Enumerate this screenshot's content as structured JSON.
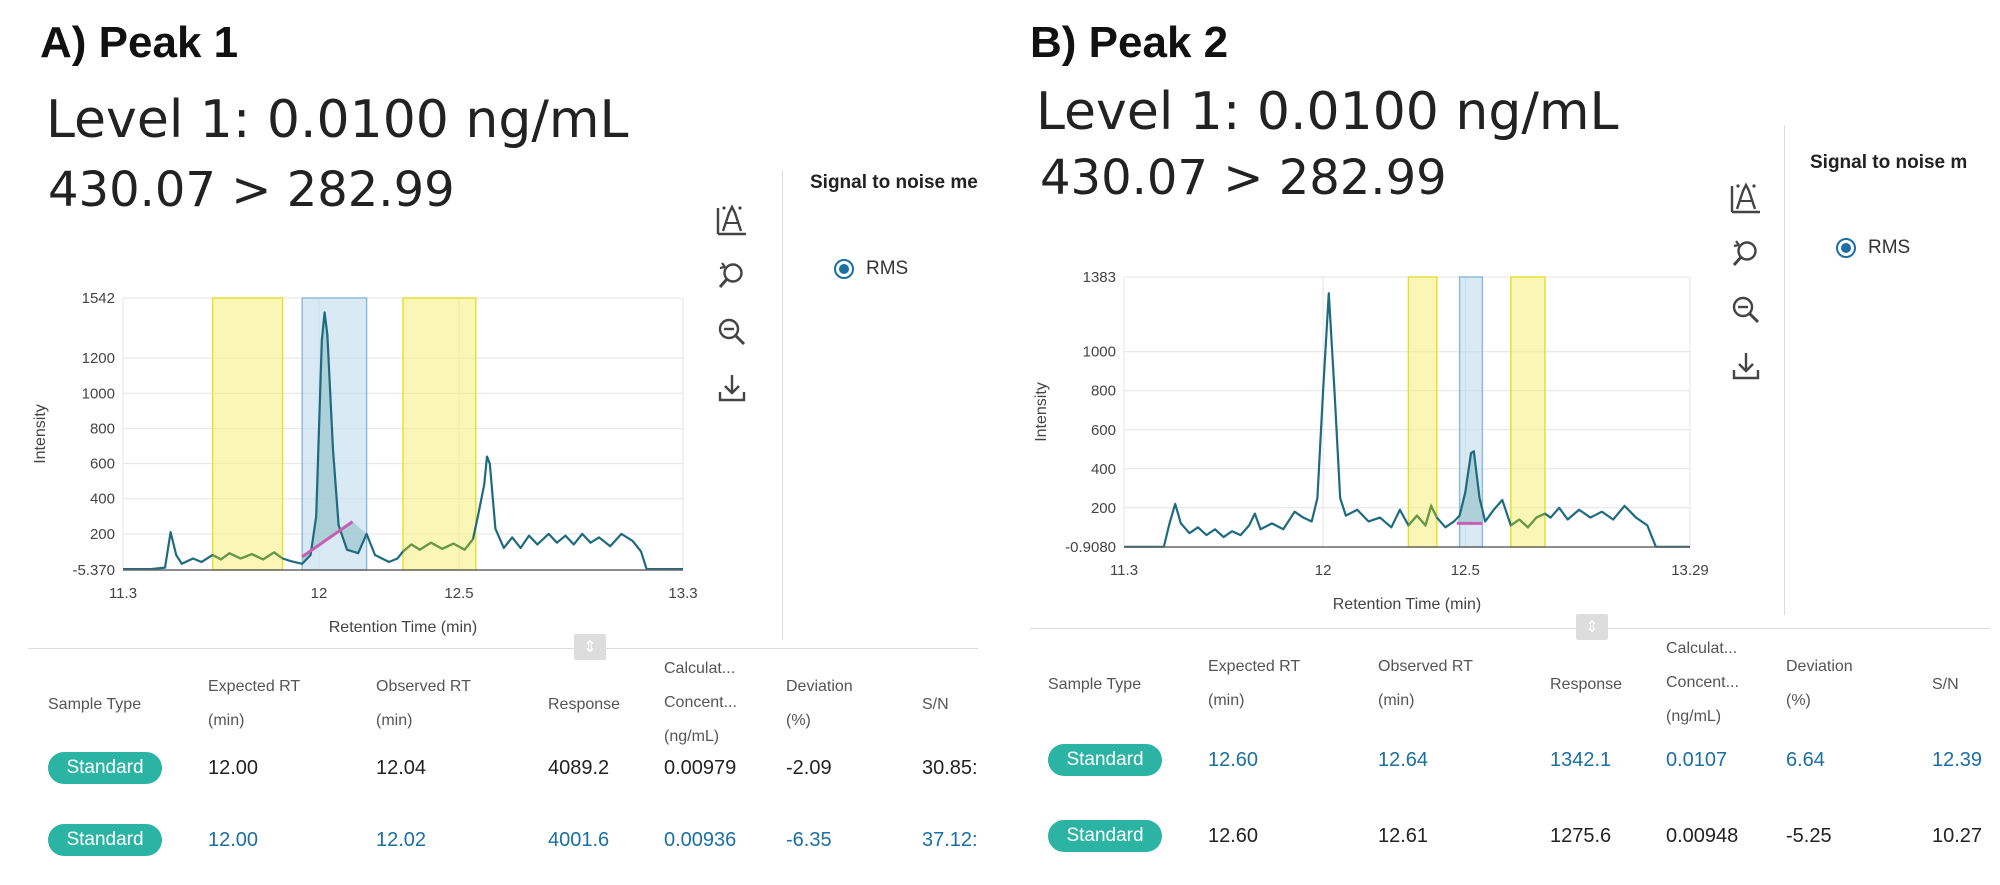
{
  "panels": [
    {
      "label": "A) Peak 1",
      "level": "Level 1: 0.0100 ng/mL",
      "transition": "430.07 > 282.99",
      "signal_to_noise_heading": "Signal to noise me",
      "option_label": "RMS",
      "toolbar_icons": [
        "peak-annotate-icon",
        "reset-zoom-icon",
        "zoom-out-icon",
        "download-icon"
      ],
      "table": {
        "columns": [
          [
            "Sample Type"
          ],
          [
            "Expected RT",
            "(min)"
          ],
          [
            "Observed RT",
            "(min)"
          ],
          [
            "Response"
          ],
          [
            "Calculat...",
            "Concent...",
            "(ng/mL)"
          ],
          [
            "Deviation",
            "(%)"
          ],
          [
            "S/N"
          ]
        ],
        "rows": [
          {
            "sample_type": "Standard",
            "expected_rt": "12.00",
            "observed_rt": "12.04",
            "response": "4089.2",
            "calc_conc": "0.00979",
            "deviation": "-2.09",
            "sn": "30.85:",
            "link_style": false
          },
          {
            "sample_type": "Standard",
            "expected_rt": "12.00",
            "observed_rt": "12.02",
            "response": "4001.6",
            "calc_conc": "0.00936",
            "deviation": "-6.35",
            "sn": "37.12:",
            "link_style": true
          }
        ]
      }
    },
    {
      "label": "B) Peak 2",
      "level": "Level 1: 0.0100 ng/mL",
      "transition": "430.07 > 282.99",
      "signal_to_noise_heading": "Signal to noise m",
      "option_label": "RMS",
      "toolbar_icons": [
        "peak-annotate-icon",
        "reset-zoom-icon",
        "zoom-out-icon",
        "download-icon"
      ],
      "table": {
        "columns": [
          [
            "Sample Type"
          ],
          [
            "Expected RT",
            "(min)"
          ],
          [
            "Observed RT",
            "(min)"
          ],
          [
            "Response"
          ],
          [
            "Calculat...",
            "Concent...",
            "(ng/mL)"
          ],
          [
            "Deviation",
            "(%)"
          ],
          [
            "S/N"
          ]
        ],
        "rows": [
          {
            "sample_type": "Standard",
            "expected_rt": "12.60",
            "observed_rt": "12.64",
            "response": "1342.1",
            "calc_conc": "0.0107",
            "deviation": "6.64",
            "sn": "12.39",
            "link_style": true
          },
          {
            "sample_type": "Standard",
            "expected_rt": "12.60",
            "observed_rt": "12.61",
            "response": "1275.6",
            "calc_conc": "0.00948",
            "deviation": "-5.25",
            "sn": "10.27",
            "link_style": false
          }
        ]
      }
    }
  ],
  "chart_data": [
    {
      "type": "line",
      "xlabel": "Retention Time (min)",
      "ylabel": "Intensity",
      "xlim": [
        11.3,
        13.3
      ],
      "ylim": [
        -5.37,
        1542
      ],
      "x_ticks": [
        "11.3",
        "12",
        "12.5",
        "13.3"
      ],
      "x_tick_values": [
        11.3,
        12,
        12.5,
        13.3
      ],
      "y_ticks": [
        "1542",
        "1200",
        "1000",
        "800",
        "600",
        "400",
        "200",
        "-5.370"
      ],
      "y_tick_values": [
        1542,
        1200,
        1000,
        800,
        600,
        400,
        200,
        -5.37
      ],
      "grid": true,
      "colors": {
        "trace": "#1e6b80",
        "noise_trace": "#6a9a3a",
        "noise_region": "#f5f07a",
        "peak_region": "#bfdcef",
        "peak_fill": "#9fc7cf",
        "baseline": "#c85fb5"
      },
      "noise_regions": [
        [
          11.62,
          11.87
        ],
        [
          12.3,
          12.56
        ]
      ],
      "peak_region": [
        11.94,
        12.17
      ],
      "peak_baseline": [
        [
          11.94,
          70
        ],
        [
          12.12,
          270
        ]
      ],
      "series": [
        {
          "points": [
            [
              11.3,
              0
            ],
            [
              11.4,
              0
            ],
            [
              11.45,
              8
            ],
            [
              11.47,
              210
            ],
            [
              11.49,
              80
            ],
            [
              11.51,
              30
            ],
            [
              11.55,
              60
            ],
            [
              11.58,
              40
            ],
            [
              11.62,
              80
            ],
            [
              11.65,
              55
            ],
            [
              11.68,
              90
            ],
            [
              11.72,
              60
            ],
            [
              11.76,
              85
            ],
            [
              11.8,
              55
            ],
            [
              11.84,
              95
            ],
            [
              11.87,
              60
            ],
            [
              11.9,
              45
            ],
            [
              11.94,
              30
            ],
            [
              11.97,
              80
            ],
            [
              11.99,
              300
            ],
            [
              12.01,
              1300
            ],
            [
              12.02,
              1460
            ],
            [
              12.03,
              1330
            ],
            [
              12.05,
              680
            ],
            [
              12.07,
              250
            ],
            [
              12.1,
              110
            ],
            [
              12.14,
              90
            ],
            [
              12.17,
              200
            ],
            [
              12.2,
              80
            ],
            [
              12.25,
              40
            ],
            [
              12.28,
              60
            ],
            [
              12.3,
              100
            ],
            [
              12.33,
              140
            ],
            [
              12.36,
              110
            ],
            [
              12.4,
              150
            ],
            [
              12.44,
              115
            ],
            [
              12.48,
              145
            ],
            [
              12.52,
              110
            ],
            [
              12.55,
              170
            ],
            [
              12.57,
              320
            ],
            [
              12.59,
              480
            ],
            [
              12.6,
              640
            ],
            [
              12.61,
              600
            ],
            [
              12.63,
              230
            ],
            [
              12.66,
              120
            ],
            [
              12.69,
              180
            ],
            [
              12.72,
              120
            ],
            [
              12.75,
              190
            ],
            [
              12.78,
              140
            ],
            [
              12.82,
              200
            ],
            [
              12.85,
              150
            ],
            [
              12.88,
              190
            ],
            [
              12.91,
              140
            ],
            [
              12.94,
              200
            ],
            [
              12.97,
              150
            ],
            [
              13.0,
              180
            ],
            [
              13.04,
              130
            ],
            [
              13.08,
              200
            ],
            [
              13.12,
              160
            ],
            [
              13.15,
              100
            ],
            [
              13.17,
              0
            ],
            [
              13.3,
              0
            ]
          ]
        }
      ]
    },
    {
      "type": "line",
      "xlabel": "Retention Time (min)",
      "ylabel": "Intensity",
      "xlim": [
        11.3,
        13.29
      ],
      "ylim": [
        -0.908,
        1383
      ],
      "x_ticks": [
        "11.3",
        "12",
        "12.5",
        "13.29"
      ],
      "x_tick_values": [
        11.3,
        12,
        12.5,
        13.29
      ],
      "y_ticks": [
        "1383",
        "1000",
        "800",
        "600",
        "400",
        "200",
        "-0.9080"
      ],
      "y_tick_values": [
        1383,
        1000,
        800,
        600,
        400,
        200,
        -0.908
      ],
      "grid": true,
      "colors": {
        "trace": "#1e6b80",
        "noise_trace": "#6a9a3a",
        "noise_region": "#f5f07a",
        "peak_region": "#bfdcef",
        "peak_fill": "#9fc7cf",
        "baseline": "#c85fb5"
      },
      "noise_regions": [
        [
          12.3,
          12.4
        ],
        [
          12.66,
          12.78
        ]
      ],
      "peak_region": [
        12.48,
        12.56
      ],
      "peak_baseline": [
        [
          12.47,
          120
        ],
        [
          12.56,
          120
        ]
      ],
      "series": [
        {
          "points": [
            [
              11.3,
              0
            ],
            [
              11.44,
              0
            ],
            [
              11.46,
              120
            ],
            [
              11.48,
              220
            ],
            [
              11.5,
              120
            ],
            [
              11.53,
              70
            ],
            [
              11.56,
              100
            ],
            [
              11.59,
              60
            ],
            [
              11.62,
              90
            ],
            [
              11.65,
              50
            ],
            [
              11.68,
              80
            ],
            [
              11.71,
              60
            ],
            [
              11.74,
              110
            ],
            [
              11.76,
              170
            ],
            [
              11.78,
              90
            ],
            [
              11.82,
              120
            ],
            [
              11.86,
              90
            ],
            [
              11.9,
              180
            ],
            [
              11.93,
              150
            ],
            [
              11.96,
              130
            ],
            [
              11.98,
              250
            ],
            [
              12.0,
              800
            ],
            [
              12.02,
              1300
            ],
            [
              12.04,
              800
            ],
            [
              12.06,
              250
            ],
            [
              12.08,
              160
            ],
            [
              12.12,
              190
            ],
            [
              12.16,
              130
            ],
            [
              12.2,
              150
            ],
            [
              12.24,
              100
            ],
            [
              12.27,
              190
            ],
            [
              12.3,
              110
            ],
            [
              12.33,
              160
            ],
            [
              12.36,
              110
            ],
            [
              12.38,
              210
            ],
            [
              12.4,
              150
            ],
            [
              12.43,
              100
            ],
            [
              12.46,
              130
            ],
            [
              12.48,
              160
            ],
            [
              12.5,
              280
            ],
            [
              12.52,
              480
            ],
            [
              12.53,
              490
            ],
            [
              12.55,
              250
            ],
            [
              12.57,
              130
            ],
            [
              12.6,
              190
            ],
            [
              12.63,
              240
            ],
            [
              12.66,
              110
            ],
            [
              12.69,
              140
            ],
            [
              12.72,
              100
            ],
            [
              12.75,
              150
            ],
            [
              12.78,
              170
            ],
            [
              12.8,
              150
            ],
            [
              12.83,
              200
            ],
            [
              12.86,
              140
            ],
            [
              12.9,
              190
            ],
            [
              12.94,
              150
            ],
            [
              12.98,
              180
            ],
            [
              13.02,
              140
            ],
            [
              13.06,
              210
            ],
            [
              13.1,
              150
            ],
            [
              13.14,
              110
            ],
            [
              13.17,
              0
            ],
            [
              13.29,
              0
            ]
          ]
        }
      ]
    }
  ]
}
